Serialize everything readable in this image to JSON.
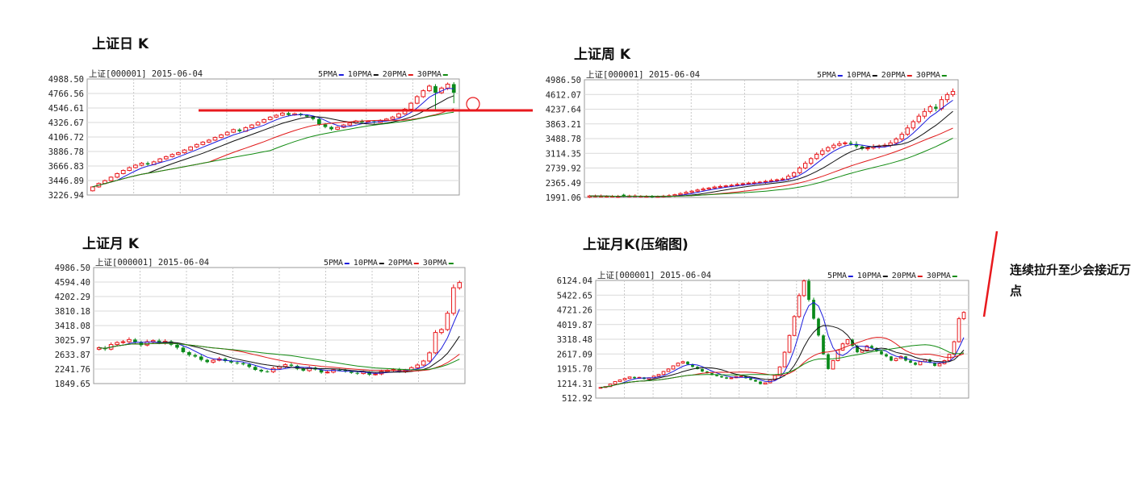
{
  "titles": {
    "daily": "上证日 K",
    "weekly": "上证周 K",
    "monthly": "上证月 K",
    "compressed": "上证月K(压缩图)"
  },
  "note": {
    "line1": "连续拉升至少会接近万",
    "line2": "点"
  },
  "colors": {
    "up": "#e8191d",
    "down": "#0a8a1a",
    "ma5": "#1a1adc",
    "ma10": "#111111",
    "ma20": "#e01818",
    "ma30": "#128b12",
    "annotation": "#e8191d"
  },
  "chart_data": [
    {
      "id": "daily",
      "type": "candlestick",
      "header": "上证[000001] 2015-06-04",
      "legend": [
        "5PMA",
        "10PMA",
        "20PMA",
        "30PMA"
      ],
      "yticks": [
        "4988.50",
        "4766.56",
        "4546.61",
        "4326.67",
        "4106.72",
        "3886.78",
        "3666.83",
        "3446.89",
        "3226.94"
      ],
      "ylim": [
        3226.94,
        4988.5
      ],
      "candles": [
        [
          3291,
          3350,
          3280,
          3362
        ],
        [
          3350,
          3402,
          3338,
          3418
        ],
        [
          3402,
          3445,
          3390,
          3462
        ],
        [
          3445,
          3498,
          3432,
          3510
        ],
        [
          3498,
          3552,
          3480,
          3568
        ],
        [
          3552,
          3600,
          3540,
          3615
        ],
        [
          3600,
          3642,
          3588,
          3660
        ],
        [
          3642,
          3680,
          3630,
          3698
        ],
        [
          3680,
          3710,
          3662,
          3728
        ],
        [
          3710,
          3690,
          3670,
          3735
        ],
        [
          3690,
          3730,
          3680,
          3748
        ],
        [
          3730,
          3776,
          3720,
          3790
        ],
        [
          3776,
          3810,
          3760,
          3825
        ],
        [
          3810,
          3842,
          3796,
          3860
        ],
        [
          3842,
          3868,
          3830,
          3885
        ],
        [
          3868,
          3910,
          3855,
          3925
        ],
        [
          3910,
          3957,
          3898,
          3970
        ],
        [
          3957,
          3994,
          3940,
          4010
        ],
        [
          3994,
          4030,
          3980,
          4045
        ],
        [
          4030,
          4060,
          4015,
          4078
        ],
        [
          4060,
          4100,
          4048,
          4115
        ],
        [
          4100,
          4140,
          4085,
          4155
        ],
        [
          4140,
          4180,
          4128,
          4196
        ],
        [
          4180,
          4220,
          4166,
          4236
        ],
        [
          4220,
          4195,
          4175,
          4240
        ],
        [
          4195,
          4250,
          4185,
          4268
        ],
        [
          4250,
          4290,
          4238,
          4305
        ],
        [
          4290,
          4330,
          4278,
          4348
        ],
        [
          4330,
          4372,
          4315,
          4388
        ],
        [
          4372,
          4410,
          4360,
          4425
        ],
        [
          4410,
          4438,
          4395,
          4455
        ],
        [
          4438,
          4470,
          4425,
          4488
        ],
        [
          4470,
          4442,
          4420,
          4490
        ],
        [
          4442,
          4460,
          4430,
          4478
        ],
        [
          4460,
          4438,
          4420,
          4475
        ],
        [
          4438,
          4418,
          4400,
          4452
        ],
        [
          4418,
          4380,
          4360,
          4430
        ],
        [
          4380,
          4300,
          4280,
          4395
        ],
        [
          4300,
          4260,
          4240,
          4318
        ],
        [
          4260,
          4225,
          4205,
          4275
        ],
        [
          4225,
          4255,
          4212,
          4270
        ],
        [
          4255,
          4290,
          4242,
          4305
        ],
        [
          4290,
          4320,
          4275,
          4338
        ],
        [
          4320,
          4350,
          4305,
          4366
        ],
        [
          4350,
          4330,
          4315,
          4372
        ],
        [
          4330,
          4345,
          4318,
          4360
        ],
        [
          4345,
          4328,
          4310,
          4358
        ],
        [
          4328,
          4360,
          4318,
          4378
        ],
        [
          4360,
          4380,
          4348,
          4395
        ],
        [
          4380,
          4410,
          4365,
          4428
        ],
        [
          4410,
          4460,
          4398,
          4478
        ],
        [
          4460,
          4530,
          4445,
          4548
        ],
        [
          4530,
          4620,
          4515,
          4640
        ],
        [
          4620,
          4720,
          4605,
          4742
        ],
        [
          4720,
          4810,
          4700,
          4832
        ],
        [
          4810,
          4880,
          4790,
          4905
        ],
        [
          4880,
          4780,
          4520,
          4910
        ],
        [
          4780,
          4850,
          4760,
          4872
        ],
        [
          4850,
          4910,
          4820,
          4935
        ],
        [
          4910,
          4780,
          4620,
          4940
        ]
      ]
    },
    {
      "id": "weekly",
      "type": "candlestick",
      "header": "上证[000001] 2015-06-04",
      "legend": [
        "5PMA",
        "10PMA",
        "20PMA",
        "30PMA"
      ],
      "yticks": [
        "4986.50",
        "4612.07",
        "4237.64",
        "3863.21",
        "3488.78",
        "3114.35",
        "2739.92",
        "2365.49",
        "1991.06"
      ],
      "ylim": [
        1991.06,
        4986.5
      ],
      "closes": [
        2030,
        2025,
        2018,
        2022,
        2015,
        2010,
        2020,
        2028,
        2024,
        2018,
        2012,
        2008,
        2016,
        2025,
        2035,
        2060,
        2090,
        2120,
        2150,
        2180,
        2205,
        2230,
        2255,
        2270,
        2285,
        2300,
        2320,
        2340,
        2355,
        2365,
        2380,
        2400,
        2420,
        2440,
        2460,
        2530,
        2620,
        2740,
        2860,
        2980,
        3090,
        3180,
        3260,
        3320,
        3360,
        3380,
        3350,
        3290,
        3230,
        3250,
        3280,
        3300,
        3320,
        3380,
        3480,
        3600,
        3760,
        3920,
        4060,
        4180,
        4300,
        4250,
        4480,
        4610,
        4690
      ],
      "down_weeks": [
        6,
        11,
        46,
        47,
        48,
        61
      ]
    },
    {
      "id": "monthly",
      "type": "candlestick",
      "header": "上证[000001] 2015-06-04",
      "legend": [
        "5PMA",
        "10PMA",
        "20PMA",
        "30PMA"
      ],
      "yticks": [
        "4986.50",
        "4594.40",
        "4202.29",
        "3810.18",
        "3418.08",
        "3025.97",
        "2633.87",
        "2241.76",
        "1849.65"
      ],
      "ylim": [
        1849.65,
        4986.5
      ],
      "closes": [
        2820,
        2780,
        2905,
        2960,
        2980,
        3040,
        2960,
        2890,
        2980,
        3010,
        2950,
        2990,
        2900,
        2820,
        2700,
        2620,
        2580,
        2490,
        2430,
        2480,
        2520,
        2460,
        2420,
        2400,
        2370,
        2300,
        2220,
        2180,
        2170,
        2260,
        2310,
        2360,
        2330,
        2250,
        2200,
        2280,
        2230,
        2150,
        2160,
        2220,
        2210,
        2180,
        2140,
        2120,
        2160,
        2090,
        2110,
        2180,
        2210,
        2230,
        2170,
        2220,
        2280,
        2350,
        2460,
        2680,
        3230,
        3310,
        3750,
        4440,
        4580
      ]
    },
    {
      "id": "compressed",
      "type": "candlestick",
      "header": "上证[000001] 2015-06-04",
      "legend": [
        "5PMA",
        "10PMA",
        "20PMA",
        "30PMA"
      ],
      "yticks": [
        "6124.04",
        "5422.65",
        "4721.26",
        "4019.87",
        "3318.48",
        "2617.09",
        "1915.70",
        "1214.31",
        "512.92"
      ],
      "ylim": [
        512.92,
        6124.04
      ],
      "closes": [
        1020,
        1060,
        1180,
        1300,
        1380,
        1450,
        1520,
        1460,
        1500,
        1420,
        1480,
        1560,
        1640,
        1780,
        1900,
        2050,
        2180,
        2250,
        2120,
        2000,
        1900,
        1780,
        1700,
        1620,
        1560,
        1500,
        1440,
        1480,
        1540,
        1560,
        1460,
        1380,
        1300,
        1180,
        1240,
        1380,
        1600,
        2000,
        2700,
        3500,
        4400,
        5400,
        6100,
        5200,
        4300,
        3500,
        2600,
        1900,
        2300,
        2800,
        3100,
        3300,
        3000,
        2700,
        2800,
        3000,
        2900,
        2750,
        2600,
        2500,
        2300,
        2400,
        2500,
        2300,
        2200,
        2100,
        2250,
        2350,
        2200,
        2050,
        2150,
        2300,
        2600,
        3200,
        4300,
        4600
      ]
    }
  ]
}
